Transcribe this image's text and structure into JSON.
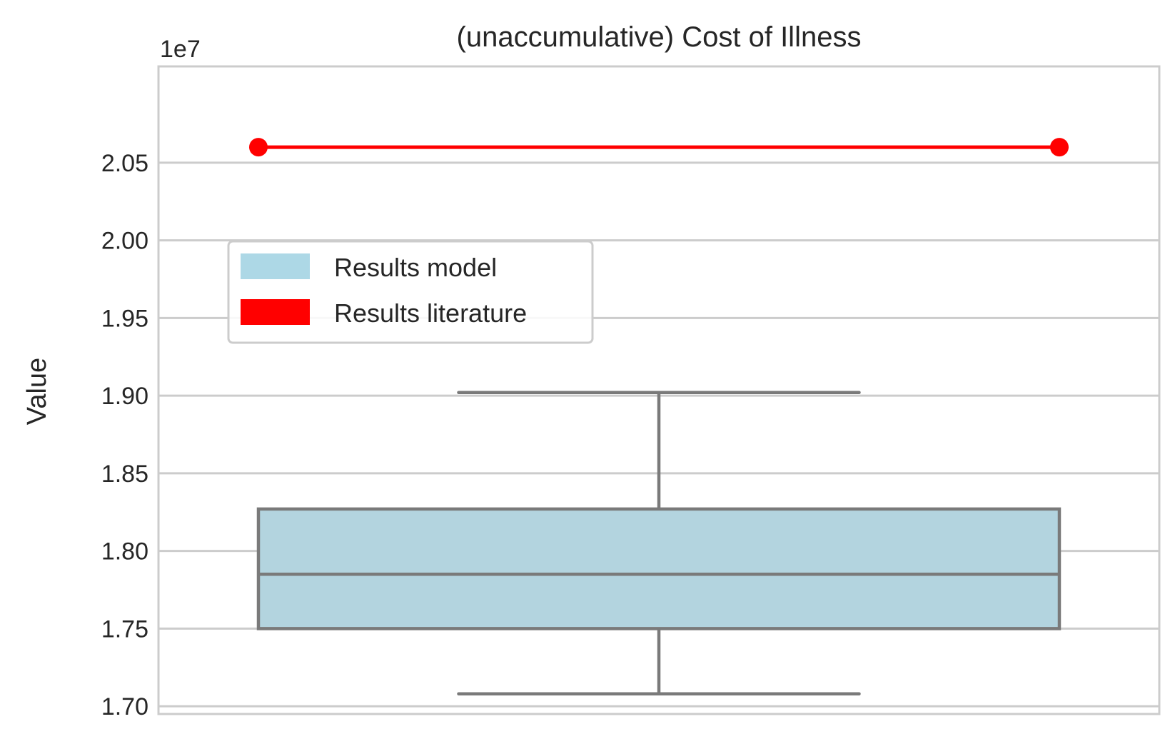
{
  "chart_data": {
    "type": "box",
    "title": "(unaccumulative) Cost of Illness",
    "xlabel": "",
    "ylabel": "Value",
    "offset_text": "1e7",
    "ylim": [
      16.95,
      21.12
    ],
    "y_ticks": [
      17.0,
      17.5,
      18.0,
      18.5,
      19.0,
      19.5,
      20.0,
      20.5
    ],
    "y_tick_labels": [
      "1.70",
      "1.75",
      "1.80",
      "1.85",
      "1.90",
      "1.95",
      "2.00",
      "2.05"
    ],
    "y_multiplier": 1000000,
    "grid": true,
    "legend_position": "center-left",
    "box": {
      "name": "Results model",
      "color": "#add8e6",
      "edge_color": "#7a7a7a",
      "whisker_low": 17.08,
      "q1": 17.5,
      "median": 17.85,
      "q3": 18.27,
      "whisker_high": 19.02
    },
    "reference_line": {
      "name": "Results literature",
      "color": "#ff0000",
      "value": 20.6
    },
    "legend": [
      {
        "label": "Results model",
        "color": "#add8e6"
      },
      {
        "label": "Results literature",
        "color": "#ff0000"
      }
    ]
  }
}
